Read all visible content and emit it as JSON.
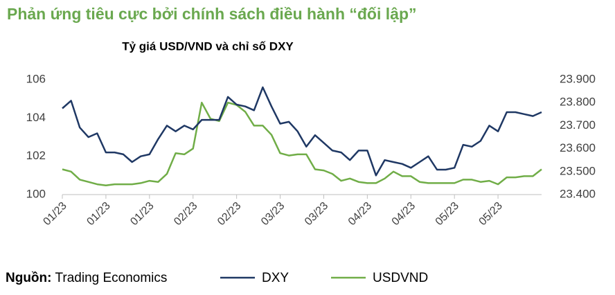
{
  "chart_data": {
    "type": "line",
    "title": "Phản ứng tiêu cực bởi chính sách điều hành “đối lập”",
    "subtitle": "Tỷ giá USD/VND và chỉ số DXY",
    "categories": [
      "01/23",
      null,
      null,
      null,
      null,
      "01/23",
      null,
      null,
      null,
      null,
      "01/23",
      null,
      null,
      null,
      null,
      "02/23",
      null,
      null,
      null,
      null,
      "02/23",
      null,
      null,
      null,
      null,
      "03/23",
      null,
      null,
      null,
      null,
      "03/23",
      null,
      null,
      null,
      null,
      "04/23",
      null,
      null,
      null,
      null,
      "04/23",
      null,
      null,
      null,
      null,
      "05/23",
      null,
      null,
      null,
      null,
      "05/23",
      null,
      null,
      null,
      null,
      null
    ],
    "series": [
      {
        "name": "DXY",
        "color": "#1f3864",
        "values": [
          104.5,
          104.9,
          103.5,
          103.0,
          103.2,
          102.2,
          102.2,
          102.1,
          101.7,
          102.0,
          102.1,
          102.9,
          103.6,
          103.3,
          103.6,
          103.4,
          103.9,
          103.9,
          103.9,
          105.1,
          104.7,
          104.6,
          104.4,
          105.6,
          104.6,
          103.7,
          103.8,
          103.3,
          102.5,
          103.1,
          102.7,
          102.3,
          102.2,
          101.8,
          102.3,
          102.3,
          101.0,
          101.8,
          101.7,
          101.6,
          101.4,
          101.7,
          102.0,
          101.3,
          101.3,
          101.4,
          102.6,
          102.5,
          102.8,
          103.6,
          103.3,
          104.3,
          104.3,
          104.2,
          104.1,
          104.3
        ]
      },
      {
        "name": "USDVND",
        "color": "#70ad47",
        "axis": "y2",
        "values": [
          23510,
          23500,
          23465,
          23455,
          23445,
          23440,
          23445,
          23445,
          23445,
          23450,
          23460,
          23455,
          23490,
          23580,
          23575,
          23600,
          23800,
          23730,
          23720,
          23800,
          23790,
          23760,
          23700,
          23700,
          23660,
          23580,
          23570,
          23575,
          23575,
          23510,
          23505,
          23490,
          23460,
          23470,
          23455,
          23450,
          23450,
          23470,
          23500,
          23480,
          23480,
          23455,
          23450,
          23450,
          23450,
          23450,
          23465,
          23465,
          23455,
          23460,
          23445,
          23475,
          23475,
          23480,
          23480,
          23510
        ]
      }
    ],
    "ylim": [
      100,
      106
    ],
    "yticks": [
      100,
      102,
      104,
      106
    ],
    "y2lim": [
      23400,
      23900
    ],
    "y2ticks": [
      {
        "value": 23400,
        "label": "23.400"
      },
      {
        "value": 23500,
        "label": "23.500"
      },
      {
        "value": 23600,
        "label": "23.600"
      },
      {
        "value": 23700,
        "label": "23.700"
      },
      {
        "value": 23800,
        "label": "23.800"
      },
      {
        "value": 23900,
        "label": "23.900"
      }
    ],
    "grid": false,
    "legend": "bottom",
    "source_label": "Nguồn:",
    "source": "Trading Economics"
  }
}
